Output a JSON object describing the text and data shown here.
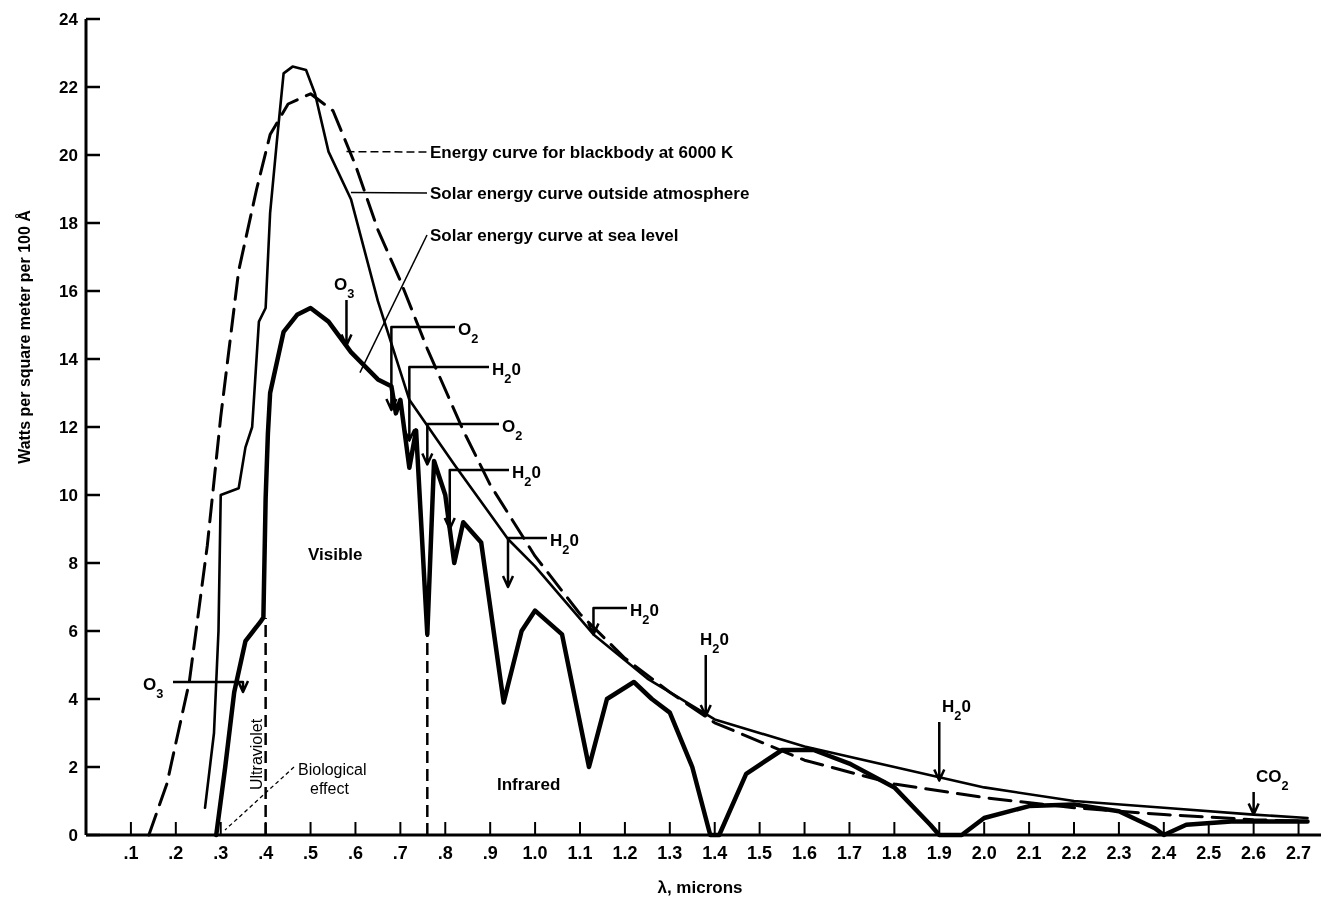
{
  "chart_data": {
    "type": "line",
    "xlabel": "λ, microns",
    "ylabel": "Watts per square meter per 100 Å",
    "xlim": [
      0,
      2.75
    ],
    "ylim": [
      0,
      24
    ],
    "xticks": [
      {
        "value": 0.1,
        "label": ".1"
      },
      {
        "value": 0.2,
        "label": ".2"
      },
      {
        "value": 0.3,
        "label": ".3"
      },
      {
        "value": 0.4,
        "label": ".4"
      },
      {
        "value": 0.5,
        "label": ".5"
      },
      {
        "value": 0.6,
        "label": ".6"
      },
      {
        "value": 0.7,
        "label": ".7"
      },
      {
        "value": 0.8,
        "label": ".8"
      },
      {
        "value": 0.9,
        "label": ".9"
      },
      {
        "value": 1.0,
        "label": "1.0"
      },
      {
        "value": 1.1,
        "label": "1.1"
      },
      {
        "value": 1.2,
        "label": "1.2"
      },
      {
        "value": 1.3,
        "label": "1.3"
      },
      {
        "value": 1.4,
        "label": "1.4"
      },
      {
        "value": 1.5,
        "label": "1.5"
      },
      {
        "value": 1.6,
        "label": "1.6"
      },
      {
        "value": 1.7,
        "label": "1.7"
      },
      {
        "value": 1.8,
        "label": "1.8"
      },
      {
        "value": 1.9,
        "label": "1.9"
      },
      {
        "value": 2.0,
        "label": "2.0"
      },
      {
        "value": 2.1,
        "label": "2.1"
      },
      {
        "value": 2.2,
        "label": "2.2"
      },
      {
        "value": 2.3,
        "label": "2.3"
      },
      {
        "value": 2.4,
        "label": "2.4"
      },
      {
        "value": 2.5,
        "label": "2.5"
      },
      {
        "value": 2.6,
        "label": "2.6"
      },
      {
        "value": 2.7,
        "label": "2.7"
      }
    ],
    "yticks": [
      0,
      2,
      4,
      6,
      8,
      10,
      12,
      14,
      16,
      18,
      20,
      22,
      24
    ],
    "grid": false,
    "legend": "top",
    "marker": "none",
    "series": [
      {
        "name": "Energy curve for blackbody at  6000 K",
        "color": "#000000",
        "line_style": "dashed",
        "x": [
          0.14,
          0.18,
          0.23,
          0.27,
          0.3,
          0.34,
          0.38,
          0.41,
          0.45,
          0.5,
          0.55,
          0.6,
          0.65,
          0.7,
          0.76,
          0.84,
          0.9,
          1.0,
          1.1,
          1.2,
          1.3,
          1.4,
          1.6,
          1.8,
          2.0,
          2.2,
          2.4,
          2.6,
          2.72
        ],
        "values": [
          0,
          1.5,
          4.5,
          8.5,
          12.3,
          16.6,
          19.0,
          20.6,
          21.5,
          21.8,
          21.3,
          19.7,
          17.8,
          16.3,
          14.3,
          11.9,
          10.3,
          8.2,
          6.5,
          5.2,
          4.2,
          3.3,
          2.2,
          1.5,
          1.1,
          0.8,
          0.6,
          0.45,
          0.4
        ]
      },
      {
        "name": "Solar energy curve outside atmosphere",
        "color": "#000000",
        "line_style": "solid",
        "x": [
          0.265,
          0.285,
          0.295,
          0.3,
          0.34,
          0.355,
          0.37,
          0.385,
          0.4,
          0.41,
          0.425,
          0.44,
          0.46,
          0.49,
          0.51,
          0.54,
          0.59,
          0.65,
          0.72,
          0.82,
          0.94,
          1.0,
          1.13,
          1.25,
          1.4,
          1.6,
          1.8,
          1.9,
          2.0,
          2.2,
          2.4,
          2.6,
          2.72
        ],
        "values": [
          0.8,
          3.0,
          6.0,
          10.0,
          10.2,
          11.4,
          12.0,
          15.1,
          15.5,
          18.3,
          20.4,
          22.4,
          22.6,
          22.5,
          21.8,
          20.1,
          18.7,
          15.7,
          12.8,
          10.9,
          8.7,
          7.9,
          5.9,
          4.6,
          3.4,
          2.6,
          2.0,
          1.7,
          1.4,
          1.0,
          0.8,
          0.6,
          0.5
        ]
      },
      {
        "name": "Solar energy curve at sea level",
        "color": "#000000",
        "line_style": "solid",
        "x": [
          0.29,
          0.31,
          0.33,
          0.355,
          0.39,
          0.395,
          0.4,
          0.405,
          0.41,
          0.44,
          0.47,
          0.5,
          0.54,
          0.59,
          0.65,
          0.68,
          0.69,
          0.7,
          0.72,
          0.735,
          0.76,
          0.775,
          0.8,
          0.82,
          0.84,
          0.88,
          0.93,
          0.97,
          1.0,
          1.06,
          1.12,
          1.16,
          1.22,
          1.26,
          1.3,
          1.35,
          1.39,
          1.41,
          1.47,
          1.55,
          1.62,
          1.7,
          1.8,
          1.88,
          1.9,
          1.95,
          2.0,
          2.1,
          2.2,
          2.3,
          2.38,
          2.4,
          2.45,
          2.55,
          2.65,
          2.72
        ],
        "values": [
          0,
          2.0,
          4.2,
          5.7,
          6.3,
          6.4,
          9.9,
          11.8,
          13.0,
          14.8,
          15.3,
          15.5,
          15.1,
          14.2,
          13.4,
          13.2,
          12.4,
          12.8,
          10.8,
          11.9,
          5.9,
          11.0,
          10.0,
          8.0,
          9.2,
          8.6,
          3.9,
          6.0,
          6.6,
          5.9,
          2.0,
          4.0,
          4.5,
          4.0,
          3.6,
          2.0,
          0,
          0,
          1.8,
          2.5,
          2.5,
          2.1,
          1.4,
          0.3,
          0,
          0,
          0.5,
          0.85,
          0.9,
          0.7,
          0.2,
          0,
          0.3,
          0.4,
          0.4,
          0.4
        ]
      }
    ],
    "ref_lines": [
      {
        "axis": "x",
        "value": 0.4,
        "line_style": "dashed"
      },
      {
        "axis": "x",
        "value": 0.76,
        "line_style": "dashed"
      }
    ],
    "annotations": [
      {
        "text": "O$_{3}$",
        "x": 0.58,
        "y": 14.4
      },
      {
        "text": "O$_{2}$",
        "x": 0.68,
        "y": 12.5
      },
      {
        "text": "H$_{2}$0",
        "x": 0.72,
        "y": 11.6
      },
      {
        "text": "O$_{2}$",
        "x": 0.76,
        "y": 10.9
      },
      {
        "text": "H$_{2}$0",
        "x": 0.81,
        "y": 9.0
      },
      "H$_{2}$0",
      {
        "text": "H$_{2}$0",
        "x": 1.13,
        "y": 5.9
      },
      {
        "text": "H$_{2}$0",
        "x": 1.38,
        "y": 3.5
      },
      {
        "text": "H$_{2}$0",
        "x": 1.9,
        "y": 1.6
      },
      {
        "text": "CO$_{2}$",
        "x": 2.6,
        "y": 0.6
      },
      "O$_{3}$",
      "Ultraviolet",
      "Visible",
      "Biological effect",
      "Infrared"
    ]
  }
}
